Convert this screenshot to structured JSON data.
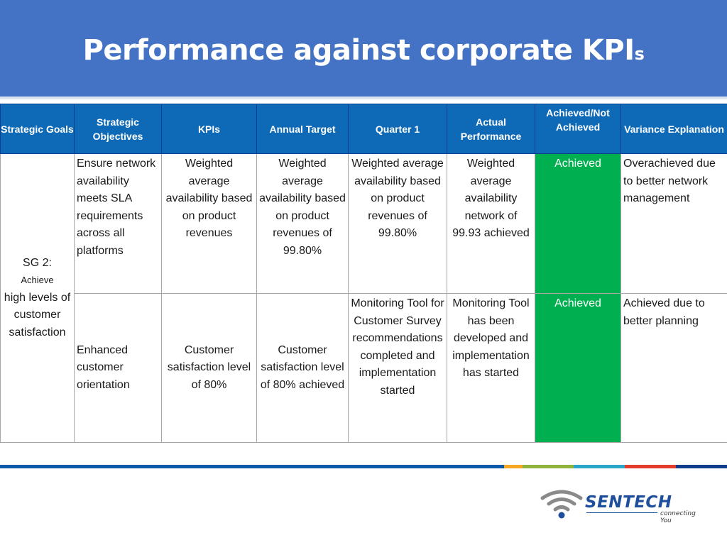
{
  "slide": {
    "title": "Performance against corporate KPI",
    "title_suffix": "s"
  },
  "table": {
    "headers": [
      "Strategic Goals",
      "Strategic Objectives",
      "KPIs",
      "Annual Target",
      "Quarter 1",
      "Actual Performance",
      "Achieved/Not Achieved",
      "Variance Explanation"
    ],
    "goal": {
      "line1": "SG 2:",
      "line2": "Achieve",
      "line3": "high levels of customer satisfaction"
    },
    "rows": [
      {
        "objective": "Ensure network availability meets SLA requirements across all platforms",
        "kpi": "Weighted average availability based on product revenues",
        "annual_target": "Weighted average availability based on product revenues of 99.80%",
        "quarter1": "Weighted average availability based on product revenues of 99.80%",
        "actual": "Weighted average availability network of 99.93 achieved",
        "status": "Achieved",
        "variance": "Overachieved due to better network management"
      },
      {
        "objective": "Enhanced customer orientation",
        "kpi": "Customer satisfaction level of 80%",
        "annual_target": "Customer satisfaction level of 80% achieved",
        "quarter1": "Monitoring Tool for Customer Survey recommendations completed and implementation started",
        "actual": "Monitoring Tool has been developed and implementation has started",
        "status": "Achieved",
        "variance": "Achieved due to better planning"
      }
    ]
  },
  "footer": {
    "stripe_colors": [
      "#0a58a8",
      "#f5a623",
      "#8fb23a",
      "#29a5c8",
      "#e23a2b",
      "#0d3c8c"
    ],
    "logo": {
      "brand": "SENTECH",
      "tagline": "connecting You",
      "icon": "wifi-icon"
    }
  },
  "colors": {
    "title_band": "#4472c4",
    "header_fill": "#0e6ab7",
    "achieved_fill": "#00b050"
  }
}
